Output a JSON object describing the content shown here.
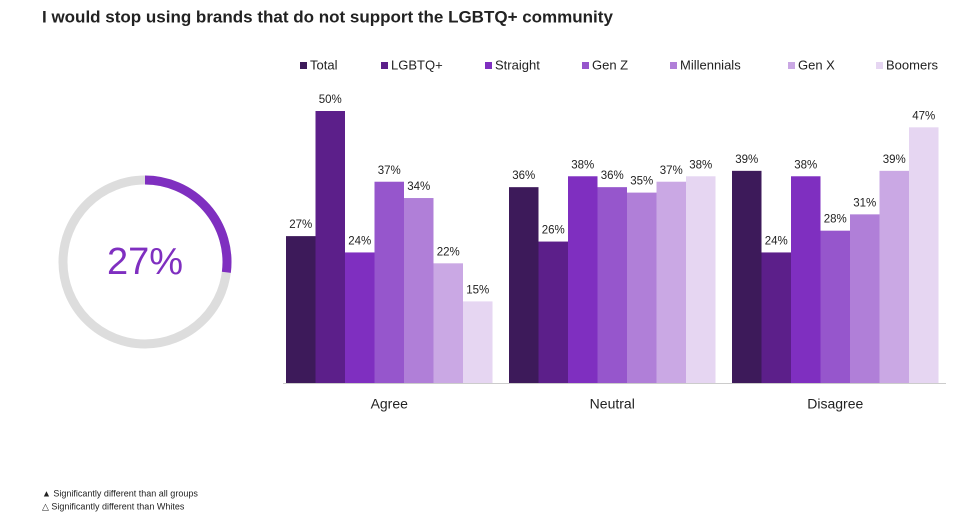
{
  "chart_data": [
    {
      "type": "donut",
      "values": [
        27
      ],
      "value_labels": [
        "27%"
      ],
      "color": "#7f2fc0",
      "track_color": "#dddddd"
    },
    {
      "type": "bar",
      "title": "I would stop using brands that do not support the LGBTQ+ community",
      "categories": [
        "Agree",
        "Neutral",
        "Disagree"
      ],
      "series": [
        {
          "name": "Total",
          "color": "#3d1a5a",
          "values": [
            27,
            36,
            39
          ],
          "value_labels": [
            "27%",
            "36%",
            "39%"
          ]
        },
        {
          "name": "LGBTQ+",
          "color": "#5c1f8a",
          "values": [
            50,
            26,
            24
          ],
          "value_labels": [
            "50%",
            "26%",
            "24%"
          ]
        },
        {
          "name": "Straight",
          "color": "#7f2fc0",
          "values": [
            24,
            38,
            38
          ],
          "value_labels": [
            "24%",
            "38%",
            "38%"
          ]
        },
        {
          "name": "Gen Z",
          "color": "#9656cc",
          "values": [
            37,
            36,
            28
          ],
          "value_labels": [
            "37%",
            "36%",
            "28%"
          ]
        },
        {
          "name": "Millennials",
          "color": "#b07fd8",
          "values": [
            34,
            35,
            31
          ],
          "value_labels": [
            "34%",
            "35%",
            "31%"
          ]
        },
        {
          "name": "Gen X",
          "color": "#caa8e4",
          "values": [
            22,
            37,
            39
          ],
          "value_labels": [
            "22%",
            "37%",
            "39%"
          ]
        },
        {
          "name": "Boomers",
          "color": "#e6d6f2",
          "values": [
            15,
            38,
            47
          ],
          "value_labels": [
            "15%",
            "38%",
            "47%"
          ]
        }
      ],
      "legend": "top"
    }
  ],
  "notes": [
    "▲ Significantly different than all groups",
    "△ Significantly different than Whites"
  ]
}
